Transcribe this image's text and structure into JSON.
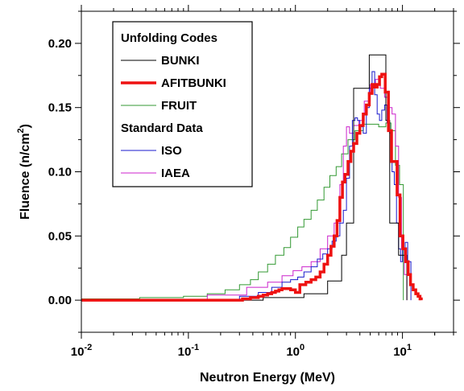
{
  "chart_data": {
    "type": "line",
    "title": "",
    "xlabel": "Neutron Energy (MeV)",
    "ylabel_main": "Fluence (n/cm",
    "ylabel_sup": "2",
    "ylabel_close": ")",
    "xscale": "log",
    "xlim": [
      0.01,
      30
    ],
    "ylim": [
      -0.025,
      0.225
    ],
    "grid": false,
    "legend_position": "top-left",
    "x_ticks": [
      {
        "value": 0.01,
        "base": "10",
        "exp": "-2"
      },
      {
        "value": 0.1,
        "base": "10",
        "exp": "-1"
      },
      {
        "value": 1,
        "base": "10",
        "exp": "0"
      },
      {
        "value": 10,
        "base": "10",
        "exp": "1"
      }
    ],
    "y_ticks": [
      {
        "value": 0.0,
        "label": "0.00"
      },
      {
        "value": 0.05,
        "label": "0.05"
      },
      {
        "value": 0.1,
        "label": "0.10"
      },
      {
        "value": 0.15,
        "label": "0.15"
      },
      {
        "value": 0.2,
        "label": "0.20"
      }
    ],
    "legend": [
      {
        "kind": "header",
        "label": "Unfolding Codes"
      },
      {
        "kind": "item",
        "label": "BUNKI",
        "series": 0
      },
      {
        "kind": "item",
        "label": "AFITBUNKI",
        "series": 1
      },
      {
        "kind": "item",
        "label": "FRUIT",
        "series": 2
      },
      {
        "kind": "header",
        "label": "Standard Data"
      },
      {
        "kind": "item",
        "label": "ISO",
        "series": 3
      },
      {
        "kind": "item",
        "label": "IAEA",
        "series": 4
      }
    ],
    "series": [
      {
        "name": "BUNKI",
        "color": "#000000",
        "width": 1,
        "x": [
          0.01,
          0.5,
          1.2,
          2.0,
          2.7,
          3.0,
          3.5,
          4.9,
          7.0,
          7.6,
          9.2,
          11
        ],
        "y": [
          0.0,
          0.002,
          0.005,
          0.015,
          0.035,
          0.06,
          0.165,
          0.191,
          0.14,
          0.06,
          0.035,
          0.0
        ]
      },
      {
        "name": "AFITBUNKI",
        "color": "#ee1111",
        "width": 3.5,
        "x": [
          0.01,
          0.25,
          0.32,
          0.38,
          0.45,
          0.5,
          0.55,
          0.6,
          0.65,
          0.7,
          0.75,
          0.8,
          0.9,
          1.0,
          1.1,
          1.25,
          1.4,
          1.55,
          1.7,
          1.85,
          2.0,
          2.15,
          2.3,
          2.45,
          2.6,
          2.75,
          2.9,
          3.1,
          3.3,
          3.5,
          3.75,
          4.0,
          4.3,
          4.6,
          4.9,
          5.2,
          5.5,
          5.8,
          6.1,
          6.4,
          6.9,
          7.4,
          7.9,
          8.4,
          8.9,
          9.5,
          10.1,
          10.7,
          11.3,
          11.9,
          12.6,
          13.3,
          14.0,
          14.6,
          15.0
        ],
        "y": [
          0.0,
          0.0,
          0.001,
          0.002,
          0.003,
          0.004,
          0.005,
          0.006,
          0.007,
          0.008,
          0.009,
          0.009,
          0.008,
          0.006,
          0.012,
          0.014,
          0.016,
          0.018,
          0.022,
          0.028,
          0.035,
          0.042,
          0.05,
          0.062,
          0.08,
          0.092,
          0.098,
          0.108,
          0.116,
          0.122,
          0.13,
          0.136,
          0.145,
          0.152,
          0.161,
          0.168,
          0.166,
          0.168,
          0.174,
          0.176,
          0.162,
          0.132,
          0.108,
          0.108,
          0.082,
          0.05,
          0.04,
          0.03,
          0.02,
          0.012,
          0.008,
          0.005,
          0.003,
          0.001,
          0.0
        ]
      },
      {
        "name": "FRUIT",
        "color": "#339933",
        "width": 1,
        "x": [
          0.01,
          0.035,
          0.09,
          0.15,
          0.22,
          0.3,
          0.38,
          0.45,
          0.55,
          0.65,
          0.78,
          0.9,
          1.05,
          1.2,
          1.4,
          1.6,
          1.85,
          2.1,
          2.4,
          2.7,
          3.1,
          3.6,
          4.3,
          5.0,
          6.0,
          7.0,
          7.8,
          8.6,
          9.4,
          10.2
        ],
        "y": [
          0.001,
          0.002,
          0.003,
          0.005,
          0.008,
          0.012,
          0.016,
          0.022,
          0.028,
          0.035,
          0.041,
          0.049,
          0.057,
          0.063,
          0.07,
          0.078,
          0.088,
          0.097,
          0.104,
          0.114,
          0.125,
          0.132,
          0.137,
          0.137,
          0.135,
          0.138,
          0.132,
          0.105,
          0.09,
          0.0
        ]
      },
      {
        "name": "ISO",
        "color": "#1a1acc",
        "width": 1,
        "x": [
          0.01,
          0.3,
          0.45,
          0.6,
          0.75,
          0.9,
          1.05,
          1.2,
          1.4,
          1.6,
          1.8,
          2.0,
          2.2,
          2.4,
          2.6,
          2.8,
          3.0,
          3.2,
          3.4,
          3.6,
          3.8,
          4.0,
          4.3,
          4.6,
          4.9,
          5.2,
          5.5,
          5.8,
          6.1,
          6.4,
          6.8,
          7.2,
          7.6,
          8.0,
          8.4,
          8.8,
          9.2,
          9.6,
          10.0,
          10.6,
          11.2,
          12.0
        ],
        "y": [
          0.0,
          0.003,
          0.006,
          0.01,
          0.014,
          0.016,
          0.018,
          0.022,
          0.026,
          0.032,
          0.036,
          0.04,
          0.046,
          0.05,
          0.06,
          0.07,
          0.095,
          0.12,
          0.14,
          0.142,
          0.14,
          0.135,
          0.13,
          0.15,
          0.165,
          0.178,
          0.16,
          0.145,
          0.14,
          0.148,
          0.152,
          0.138,
          0.13,
          0.1,
          0.09,
          0.06,
          0.04,
          0.03,
          0.04,
          0.045,
          0.03,
          0.0
        ]
      },
      {
        "name": "IAEA",
        "color": "#cc22cc",
        "width": 1,
        "x": [
          0.01,
          0.15,
          0.35,
          0.55,
          0.75,
          0.95,
          1.15,
          1.4,
          1.7,
          2.0,
          2.3,
          2.6,
          2.8,
          3.0,
          3.2,
          3.5,
          3.9,
          4.4,
          5.0,
          5.6,
          6.2,
          6.8,
          7.4,
          8.0,
          8.6,
          9.2,
          9.8,
          10.4,
          11.0
        ],
        "y": [
          0.0,
          0.004,
          0.01,
          0.014,
          0.019,
          0.023,
          0.026,
          0.03,
          0.04,
          0.05,
          0.06,
          0.09,
          0.12,
          0.135,
          0.13,
          0.136,
          0.14,
          0.155,
          0.168,
          0.172,
          0.165,
          0.158,
          0.15,
          0.145,
          0.12,
          0.08,
          0.04,
          0.02,
          0.0
        ]
      }
    ]
  }
}
